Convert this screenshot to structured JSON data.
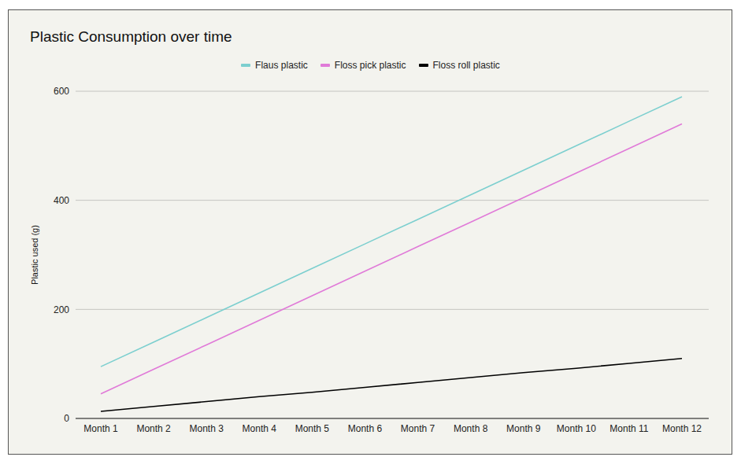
{
  "chart_data": {
    "type": "line",
    "title": "Plastic Consumption over time",
    "y_label": "Plastic used (g)",
    "categories": [
      "Month 1",
      "Month 2",
      "Month 3",
      "Month 4",
      "Month 5",
      "Month 6",
      "Month 7",
      "Month 8",
      "Month 9",
      "Month 10",
      "Month 11",
      "Month 12"
    ],
    "series": [
      {
        "name": "Flaus plastic",
        "color": "#7ccfcf",
        "values": [
          95,
          140,
          185,
          230,
          275,
          320,
          365,
          410,
          455,
          500,
          545,
          590
        ]
      },
      {
        "name": "Floss pick plastic",
        "color": "#e07ad8",
        "values": [
          45,
          90,
          135,
          180,
          225,
          270,
          315,
          360,
          405,
          450,
          495,
          540
        ]
      },
      {
        "name": "Floss roll plastic",
        "color": "#000000",
        "values": [
          13,
          22,
          31,
          40,
          48,
          57,
          66,
          75,
          84,
          92,
          101,
          110
        ]
      }
    ],
    "ylim": [
      0,
      600
    ],
    "yticks": [
      0,
      200,
      400,
      600
    ],
    "grid": true,
    "legend": "top"
  }
}
